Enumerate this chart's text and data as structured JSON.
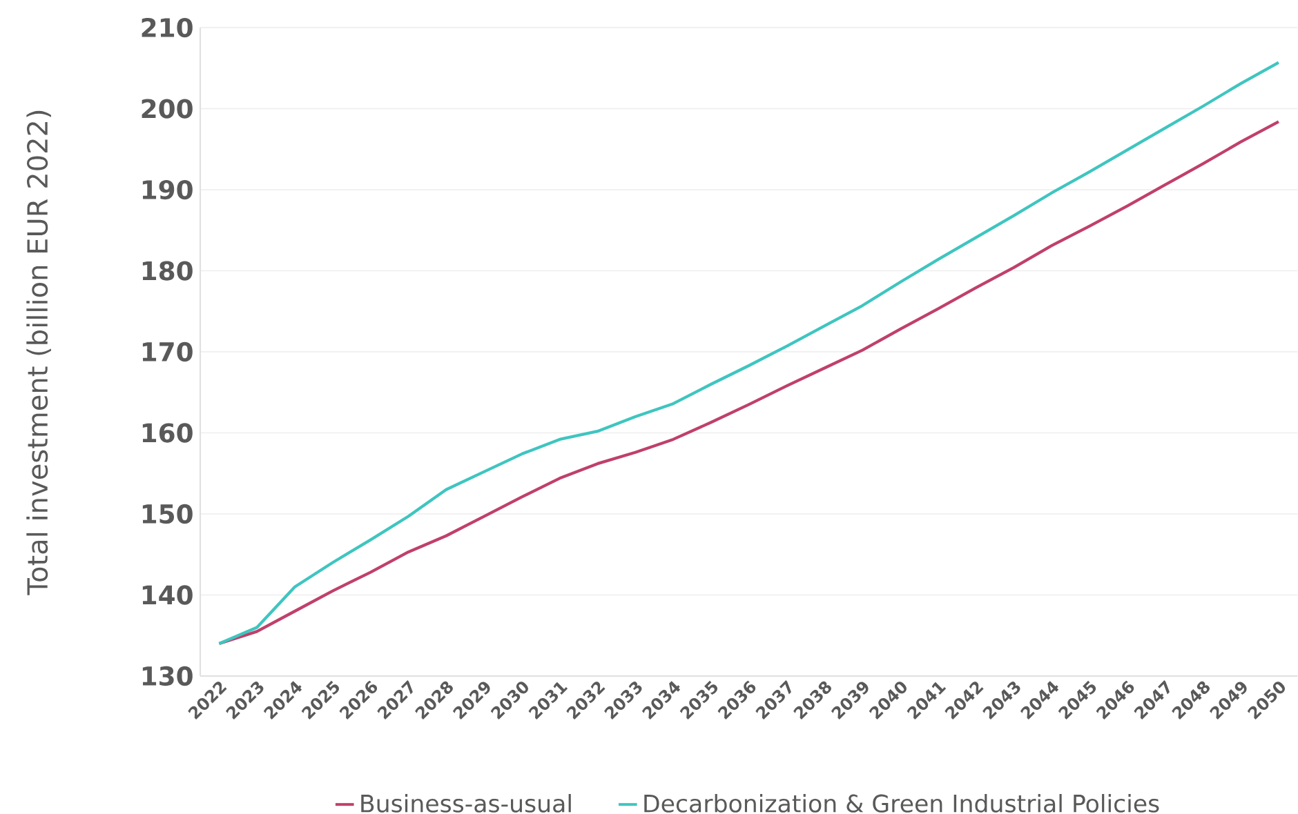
{
  "chart_data": {
    "type": "line",
    "ylabel": "Total investment (billion EUR 2022)",
    "categories": [
      "2022",
      "2023",
      "2024",
      "2025",
      "2026",
      "2027",
      "2028",
      "2029",
      "2030",
      "2031",
      "2032",
      "2033",
      "2034",
      "2035",
      "2036",
      "2037",
      "2038",
      "2039",
      "2040",
      "2041",
      "2042",
      "2043",
      "2044",
      "2045",
      "2046",
      "2047",
      "2048",
      "2049",
      "2050"
    ],
    "series": [
      {
        "name": "Business-as-usual",
        "color": "#c0406b",
        "values": [
          134,
          135.5,
          138,
          140.5,
          142.8,
          145.3,
          147.3,
          149.7,
          152.1,
          154.4,
          156.2,
          157.6,
          159.2,
          161.3,
          163.5,
          165.8,
          168,
          170.2,
          172.8,
          175.3,
          177.9,
          180.4,
          183.1,
          185.5,
          188,
          190.6,
          193.2,
          195.9,
          198.4
        ]
      },
      {
        "name": "Decarbonization & Green Industrial Policies",
        "color": "#3fc5c0",
        "values": [
          134,
          136,
          141,
          144,
          146.8,
          149.7,
          153,
          155.2,
          157.4,
          159.2,
          160.2,
          162,
          163.6,
          166,
          168.3,
          170.7,
          173.2,
          175.7,
          178.6,
          181.4,
          184.1,
          186.8,
          189.6,
          192.2,
          194.9,
          197.6,
          200.3,
          203.1,
          205.7
        ]
      }
    ],
    "ylim": [
      130,
      210
    ],
    "yticks": [
      130,
      140,
      150,
      160,
      170,
      180,
      190,
      200,
      210
    ],
    "grid": "y",
    "legend": "bottom",
    "marker": "none",
    "line_style": "solid"
  }
}
